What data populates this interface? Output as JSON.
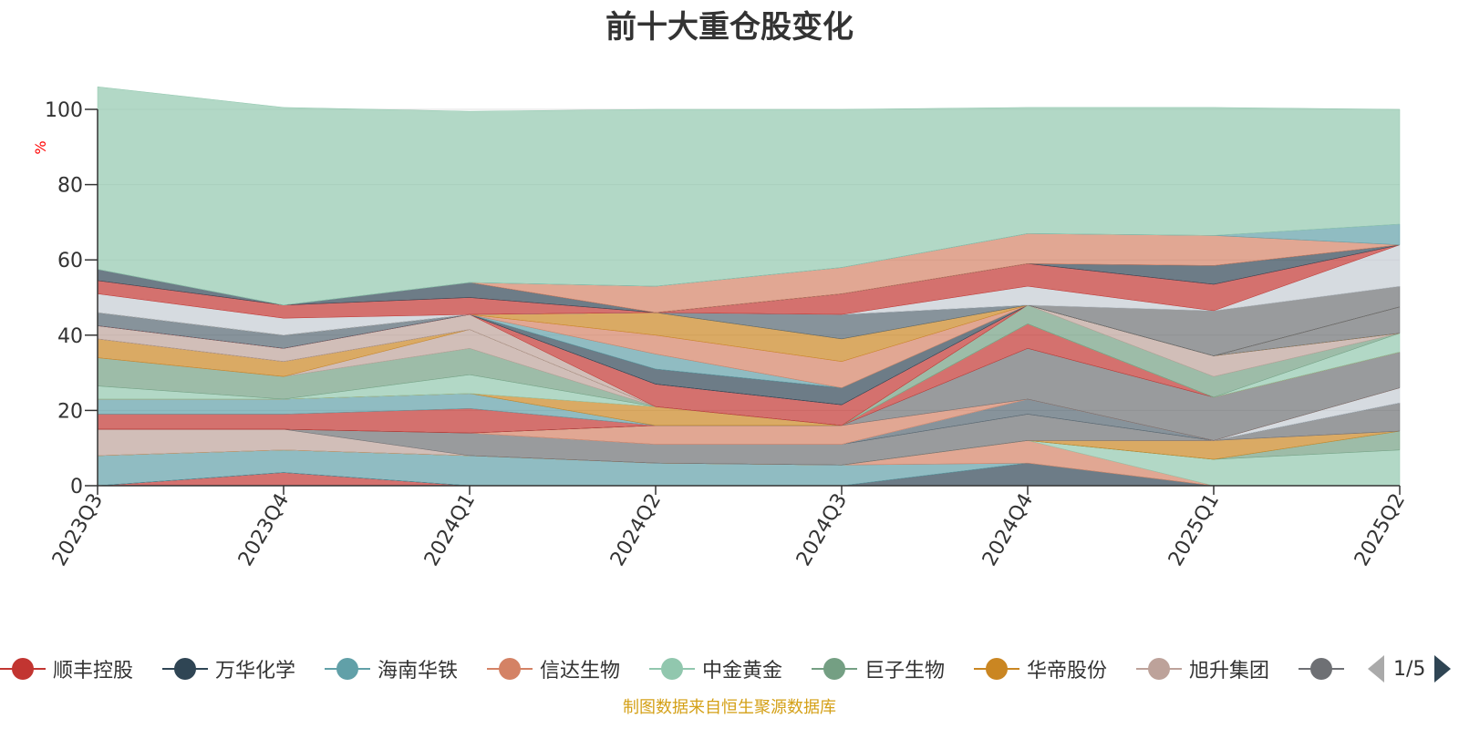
{
  "title": "前十大重仓股变化",
  "unit_label": "%",
  "source_note": "制图数据来自恒生聚源数据库",
  "pager": {
    "text": "1/5"
  },
  "legend_items": [
    {
      "name": "顺丰控股",
      "color": "#c23531"
    },
    {
      "name": "万华化学",
      "color": "#2f4554"
    },
    {
      "name": "海南华铁",
      "color": "#61a0a8"
    },
    {
      "name": "信达生物",
      "color": "#d48265"
    },
    {
      "name": "中金黄金",
      "color": "#91c7ae"
    },
    {
      "name": "巨子生物",
      "color": "#749f83"
    },
    {
      "name": "华帝股份",
      "color": "#ca8622"
    },
    {
      "name": "旭升集团",
      "color": "#bda29a"
    },
    {
      "name": "",
      "color": "#6e7074"
    }
  ],
  "chart_data": {
    "type": "area",
    "stacked": true,
    "title": "前十大重仓股变化",
    "ylabel": "%",
    "ylim": [
      0,
      100
    ],
    "yticks": [
      "0",
      "20",
      "40",
      "60",
      "80",
      "100"
    ],
    "categories": [
      "2023Q3",
      "2023Q4",
      "2024Q1",
      "2024Q2",
      "2024Q3",
      "2024Q4",
      "2025Q1",
      "2025Q2"
    ],
    "grid": true,
    "series": [
      {
        "color": "#c23531",
        "values": [
          0,
          3.5,
          0,
          0,
          0,
          0,
          0,
          0
        ]
      },
      {
        "color": "#2f4554",
        "values": [
          0,
          0,
          0,
          0,
          0,
          6,
          0,
          0
        ]
      },
      {
        "color": "#61a0a8",
        "values": [
          8,
          6,
          8,
          6,
          5.5,
          0,
          0,
          0
        ]
      },
      {
        "color": "#d48265",
        "values": [
          0,
          0,
          0,
          0,
          0,
          6,
          0,
          0
        ]
      },
      {
        "color": "#91c7ae",
        "values": [
          0,
          0,
          0,
          0,
          0,
          0,
          7,
          9.5
        ]
      },
      {
        "color": "#749f83",
        "values": [
          0,
          0,
          0,
          0,
          0,
          0,
          0,
          5
        ]
      },
      {
        "color": "#ca8622",
        "values": [
          0,
          0,
          0,
          0,
          0,
          0,
          5,
          0
        ]
      },
      {
        "color": "#bda29a",
        "values": [
          7,
          5.5,
          0,
          0,
          0,
          0,
          0,
          0
        ]
      },
      {
        "color": "#6e7074",
        "values": [
          0,
          0,
          6,
          5,
          5.5,
          7,
          0,
          7.5
        ]
      },
      {
        "color": "#546570",
        "values": [
          0,
          0,
          0,
          0,
          0,
          4,
          0,
          0
        ]
      },
      {
        "color": "#c4ccd3",
        "values": [
          0,
          0,
          0,
          0,
          0,
          0,
          0,
          4
        ]
      },
      {
        "color": "#d48265",
        "values": [
          0,
          0,
          0,
          5,
          5,
          0,
          0,
          0
        ]
      },
      {
        "color": "#6e7074",
        "values": [
          0,
          0,
          0,
          0,
          0,
          13.5,
          11.5,
          9.5
        ]
      },
      {
        "color": "#c23531",
        "values": [
          4,
          4,
          6.5,
          0,
          0,
          6.5,
          0,
          0
        ]
      },
      {
        "color": "#61a0a8",
        "values": [
          4,
          4,
          4,
          0,
          0,
          0,
          0,
          0
        ]
      },
      {
        "color": "#ca8622",
        "values": [
          0,
          0,
          0,
          5,
          0,
          0,
          0,
          0
        ]
      },
      {
        "color": "#91c7ae",
        "values": [
          3.5,
          0,
          5,
          0,
          0,
          0,
          0,
          5
        ]
      },
      {
        "color": "#749f83",
        "values": [
          7.5,
          6,
          7,
          0,
          0,
          5,
          5.5,
          0
        ]
      },
      {
        "color": "#bda29a",
        "values": [
          0,
          0,
          5,
          0,
          0,
          0,
          5.5,
          0
        ]
      },
      {
        "color": "#ca8622",
        "values": [
          5,
          4,
          0,
          0,
          0,
          0,
          0,
          0
        ]
      },
      {
        "color": "#6e7074",
        "values": [
          0,
          0,
          0,
          0,
          0,
          0,
          0,
          7
        ]
      },
      {
        "color": "#bda29a",
        "values": [
          3.5,
          3.5,
          4,
          0,
          0,
          0,
          0,
          0
        ]
      },
      {
        "color": "#c23531",
        "values": [
          0,
          0,
          0,
          6,
          5.5,
          0,
          0,
          0
        ]
      },
      {
        "color": "#546570",
        "values": [
          3.5,
          3.5,
          0,
          0,
          0,
          0,
          0,
          0
        ]
      },
      {
        "color": "#2f4554",
        "values": [
          0,
          0,
          0,
          4,
          4.5,
          0,
          0,
          0
        ]
      },
      {
        "color": "#61a0a8",
        "values": [
          0,
          0,
          0,
          4,
          0,
          0,
          0,
          0
        ]
      },
      {
        "color": "#d48265",
        "values": [
          0,
          0,
          0,
          5,
          7,
          0,
          0,
          0
        ]
      },
      {
        "color": "#ca8622",
        "values": [
          0,
          0,
          0,
          6,
          6,
          0,
          0,
          0
        ]
      },
      {
        "color": "#546570",
        "values": [
          0,
          0,
          0,
          0,
          6.5,
          0,
          0,
          0
        ]
      },
      {
        "color": "#6e7074",
        "values": [
          0,
          0,
          0,
          0,
          0,
          0,
          12,
          5.5
        ]
      },
      {
        "color": "#c4ccd3",
        "values": [
          5,
          4.5,
          0,
          0,
          0,
          5,
          0,
          11
        ]
      },
      {
        "color": "#c23531",
        "values": [
          3.5,
          3.5,
          4.5,
          0,
          5.5,
          6,
          7,
          0
        ]
      },
      {
        "color": "#2f4554",
        "values": [
          3,
          0,
          4,
          0,
          0,
          0,
          5,
          0
        ]
      },
      {
        "color": "#d48265",
        "values": [
          0,
          0,
          0,
          7,
          7,
          8,
          8,
          0
        ]
      },
      {
        "color": "#61a0a8",
        "values": [
          0,
          0,
          0,
          0,
          0,
          0,
          0,
          5.5
        ]
      },
      {
        "color": "#91c7ae",
        "values": [
          48.5,
          52.5,
          45.5,
          47,
          42,
          33.5,
          34,
          30.5
        ]
      }
    ]
  }
}
